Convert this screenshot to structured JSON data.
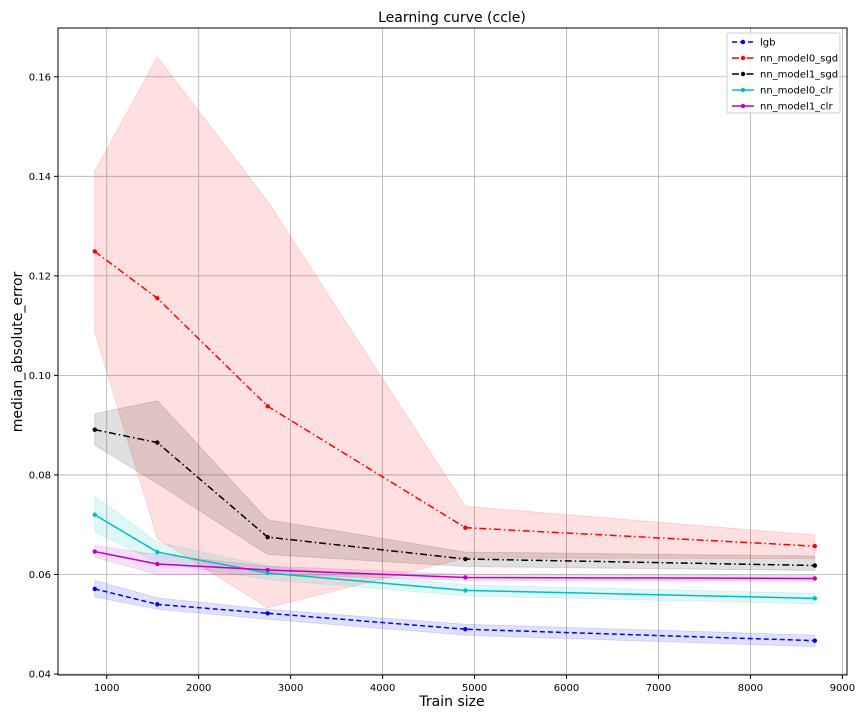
{
  "chart_data": {
    "type": "line",
    "title": "Learning curve (ccle)",
    "xlabel": "Train size",
    "ylabel": "median_absolute_error",
    "xlim": [
      470,
      9050
    ],
    "ylim": [
      0.0398,
      0.1698
    ],
    "x_ticks": [
      1000,
      2000,
      3000,
      4000,
      5000,
      6000,
      7000,
      8000,
      9000
    ],
    "y_ticks": [
      0.04,
      0.06,
      0.08,
      0.1,
      0.12,
      0.14,
      0.16
    ],
    "y_tick_labels": [
      "0.04",
      "0.06",
      "0.08",
      "0.10",
      "0.12",
      "0.14",
      "0.16"
    ],
    "grid": true,
    "legend_position": "top-right",
    "x": [
      870,
      1550,
      2750,
      4900,
      8700
    ],
    "series": [
      {
        "name": "lgb",
        "color": "#0000ff",
        "dash": "dashed",
        "values": [
          0.0571,
          0.054,
          0.0522,
          0.049,
          0.0467
        ],
        "lower": [
          0.0555,
          0.053,
          0.051,
          0.0478,
          0.0455
        ],
        "upper": [
          0.0588,
          0.0553,
          0.053,
          0.05,
          0.0478
        ]
      },
      {
        "name": "nn_model0_sgd",
        "color": "#ff0000",
        "dash": "dashdot",
        "values": [
          0.1249,
          0.1155,
          0.0938,
          0.0694,
          0.0657
        ],
        "lower": [
          0.1087,
          0.0672,
          0.0533,
          0.0633,
          0.0632
        ],
        "upper": [
          0.141,
          0.164,
          0.135,
          0.0737,
          0.0679
        ]
      },
      {
        "name": "nn_model1_sgd",
        "color": "#000000",
        "dash": "dashdot",
        "values": [
          0.0891,
          0.0865,
          0.0675,
          0.0631,
          0.0618
        ],
        "lower": [
          0.086,
          0.0783,
          0.064,
          0.0616,
          0.0608
        ],
        "upper": [
          0.0923,
          0.0949,
          0.071,
          0.0645,
          0.0637
        ]
      },
      {
        "name": "nn_model0_clr",
        "color": "#00bfbf",
        "dash": "solid",
        "values": [
          0.072,
          0.0645,
          0.0603,
          0.0568,
          0.0552
        ],
        "lower": [
          0.0685,
          0.0624,
          0.059,
          0.0557,
          0.0541
        ],
        "upper": [
          0.0757,
          0.0665,
          0.0617,
          0.0579,
          0.0562
        ]
      },
      {
        "name": "nn_model1_clr",
        "color": "#bf00bf",
        "dash": "solid",
        "values": [
          0.0646,
          0.0621,
          0.0609,
          0.0594,
          0.0592
        ],
        "lower": [
          0.0635,
          0.06,
          0.0601,
          0.0588,
          0.0586
        ],
        "upper": [
          0.0658,
          0.064,
          0.0617,
          0.06,
          0.0598
        ]
      }
    ]
  }
}
